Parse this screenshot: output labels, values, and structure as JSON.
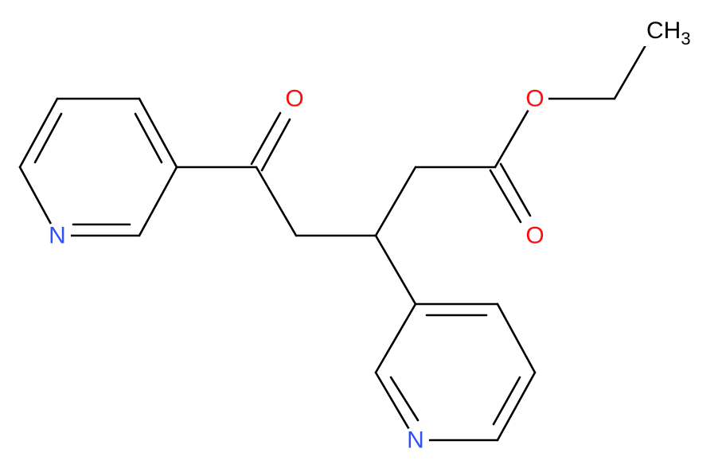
{
  "atoms": [
    {
      "label": "O"
    },
    {
      "label": "O"
    },
    {
      "label": "O"
    },
    {
      "label": "N"
    },
    {
      "label": "N"
    },
    {
      "label": "CH",
      "subscript": "3"
    }
  ]
}
